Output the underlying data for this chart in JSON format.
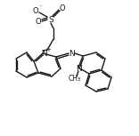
{
  "bond_color": "#1a1a1a",
  "lw": 1.0,
  "fs": 6.5,
  "figsize": [
    1.56,
    1.53
  ],
  "dpi": 100,
  "xlim": [
    0,
    156
  ],
  "ylim": [
    0,
    153
  ]
}
